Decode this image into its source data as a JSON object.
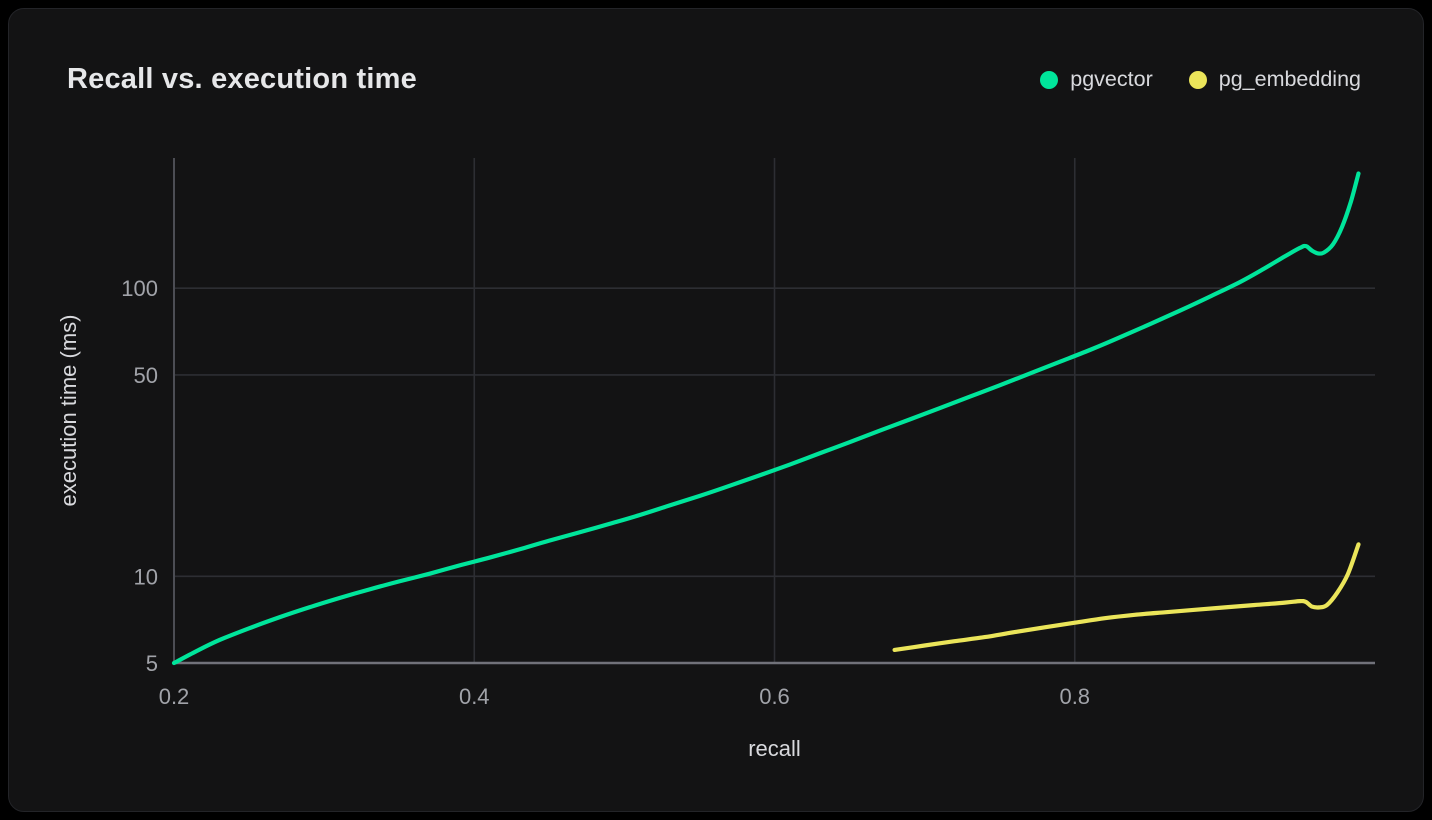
{
  "chart_data": {
    "type": "line",
    "title": "Recall vs. execution time",
    "xlabel": "recall",
    "ylabel": "execution time (ms)",
    "xlim": [
      0.2,
      1.0
    ],
    "ylim": [
      5,
      283
    ],
    "yscale": "log",
    "grid": true,
    "legend_position": "top-right",
    "xticks": [
      0.2,
      0.4,
      0.6,
      0.8
    ],
    "xtick_labels": [
      "0.2",
      "0.4",
      "0.6",
      "0.8"
    ],
    "yticks": [
      5,
      10,
      50,
      100
    ],
    "ytick_labels": [
      "5",
      "10",
      "50",
      "100"
    ],
    "series": [
      {
        "name": "pgvector",
        "color": "#00e59b",
        "points": [
          [
            0.2,
            5.0
          ],
          [
            0.215,
            5.5
          ],
          [
            0.23,
            6.0
          ],
          [
            0.25,
            6.6
          ],
          [
            0.27,
            7.2
          ],
          [
            0.29,
            7.8
          ],
          [
            0.31,
            8.4
          ],
          [
            0.33,
            9.0
          ],
          [
            0.35,
            9.6
          ],
          [
            0.37,
            10.2
          ],
          [
            0.39,
            10.9
          ],
          [
            0.41,
            11.6
          ],
          [
            0.43,
            12.4
          ],
          [
            0.45,
            13.3
          ],
          [
            0.47,
            14.2
          ],
          [
            0.49,
            15.2
          ],
          [
            0.51,
            16.3
          ],
          [
            0.53,
            17.6
          ],
          [
            0.55,
            19.0
          ],
          [
            0.57,
            20.6
          ],
          [
            0.59,
            22.4
          ],
          [
            0.61,
            24.4
          ],
          [
            0.63,
            26.7
          ],
          [
            0.65,
            29.2
          ],
          [
            0.67,
            32.0
          ],
          [
            0.69,
            35.0
          ],
          [
            0.71,
            38.3
          ],
          [
            0.73,
            42.0
          ],
          [
            0.75,
            46.0
          ],
          [
            0.77,
            50.5
          ],
          [
            0.79,
            55.5
          ],
          [
            0.81,
            61.0
          ],
          [
            0.83,
            67.5
          ],
          [
            0.85,
            75.0
          ],
          [
            0.87,
            83.5
          ],
          [
            0.89,
            93.5
          ],
          [
            0.91,
            105
          ],
          [
            0.925,
            116
          ],
          [
            0.94,
            129
          ],
          [
            0.95,
            138
          ],
          [
            0.954,
            140
          ],
          [
            0.958,
            135
          ],
          [
            0.962,
            132
          ],
          [
            0.966,
            133
          ],
          [
            0.972,
            142
          ],
          [
            0.978,
            163
          ],
          [
            0.984,
            200
          ],
          [
            0.989,
            250
          ]
        ]
      },
      {
        "name": "pg_embedding",
        "color": "#ebe55a",
        "points": [
          [
            0.68,
            5.55
          ],
          [
            0.7,
            5.75
          ],
          [
            0.72,
            5.95
          ],
          [
            0.74,
            6.15
          ],
          [
            0.76,
            6.4
          ],
          [
            0.78,
            6.65
          ],
          [
            0.8,
            6.9
          ],
          [
            0.82,
            7.15
          ],
          [
            0.84,
            7.35
          ],
          [
            0.86,
            7.5
          ],
          [
            0.88,
            7.65
          ],
          [
            0.9,
            7.8
          ],
          [
            0.92,
            7.95
          ],
          [
            0.94,
            8.1
          ],
          [
            0.95,
            8.2
          ],
          [
            0.954,
            8.15
          ],
          [
            0.958,
            7.85
          ],
          [
            0.963,
            7.8
          ],
          [
            0.968,
            7.95
          ],
          [
            0.975,
            8.8
          ],
          [
            0.982,
            10.2
          ],
          [
            0.989,
            12.9
          ]
        ]
      }
    ]
  },
  "legend": [
    {
      "label": "pgvector",
      "color": "#00e59b"
    },
    {
      "label": "pg_embedding",
      "color": "#ebe55a"
    }
  ],
  "colors": {
    "page_background": "#000000",
    "card_background": "#131314",
    "card_border": "#232428",
    "grid": "#2d2e33",
    "axis_bottom": "#71727a",
    "axis_left": "#4c4d54",
    "tick_text": "#a1a3a9",
    "axis_label_text": "#d8d9dd",
    "title_text": "#e6e7e9"
  }
}
